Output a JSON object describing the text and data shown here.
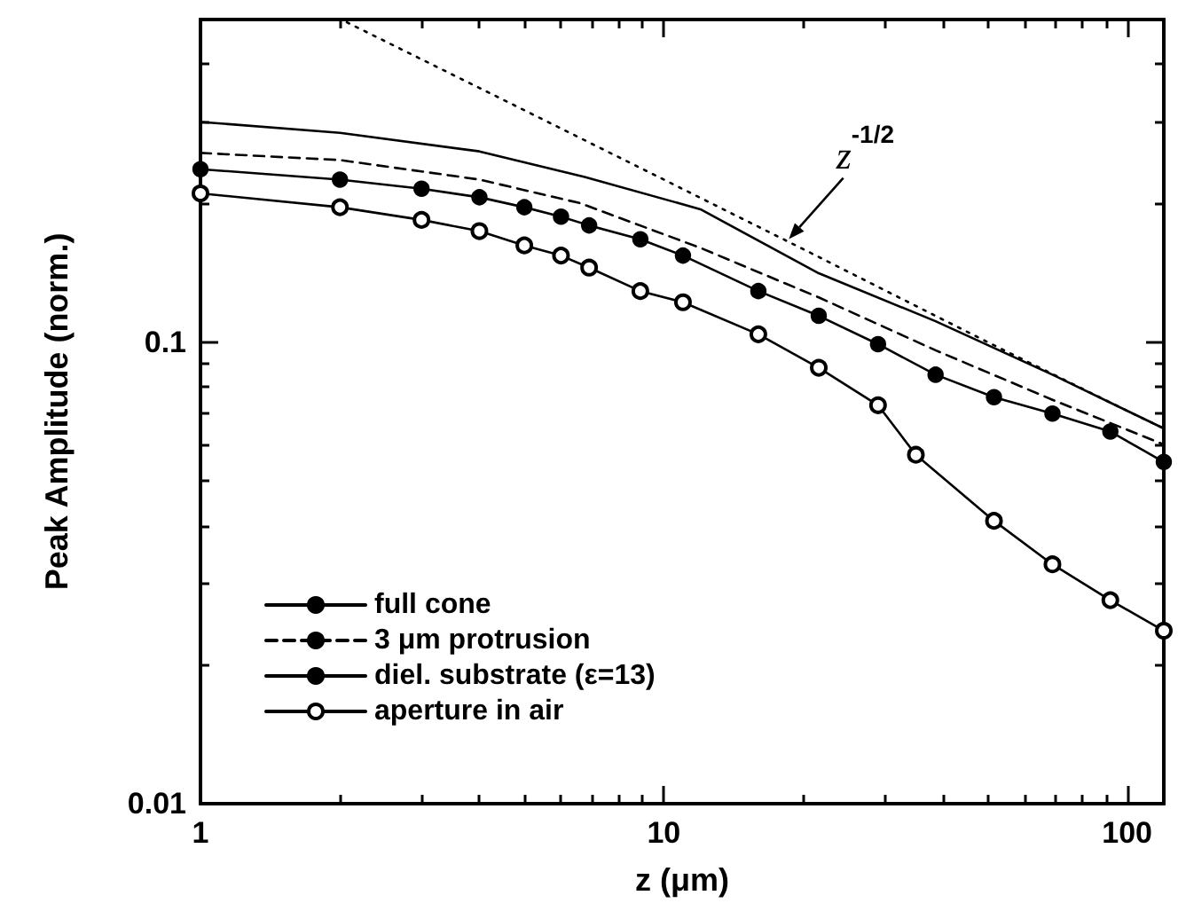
{
  "chart_data": {
    "type": "line",
    "xlabel": "z (μm)",
    "ylabel": "Peak Amplitude (norm.)",
    "log": "xy",
    "xlim": [
      1,
      120
    ],
    "ylim": [
      0.01,
      0.5
    ],
    "xticks": [
      1,
      {
        "value": 2,
        "label": null
      },
      {
        "value": 3,
        "label": null
      },
      {
        "value": 4,
        "label": null
      },
      {
        "value": 5,
        "label": null
      },
      {
        "value": 6,
        "label": null
      },
      {
        "value": 7,
        "label": null
      },
      {
        "value": 8,
        "label": null
      },
      {
        "value": 9,
        "label": null
      },
      10,
      {
        "value": 20,
        "label": null
      },
      {
        "value": 30,
        "label": null
      },
      {
        "value": 40,
        "label": null
      },
      {
        "value": 50,
        "label": null
      },
      {
        "value": 60,
        "label": null
      },
      {
        "value": 70,
        "label": null
      },
      {
        "value": 80,
        "label": null
      },
      {
        "value": 90,
        "label": null
      },
      100
    ],
    "yticks": [
      0.01,
      {
        "value": 0.02,
        "label": null
      },
      {
        "value": 0.03,
        "label": null
      },
      {
        "value": 0.04,
        "label": null
      },
      {
        "value": 0.05,
        "label": null
      },
      {
        "value": 0.06,
        "label": null
      },
      {
        "value": 0.07,
        "label": null
      },
      {
        "value": 0.08,
        "label": null
      },
      {
        "value": 0.09,
        "label": null
      },
      0.1,
      {
        "value": 0.2,
        "label": null
      },
      {
        "value": 0.3,
        "label": null
      },
      {
        "value": 0.4,
        "label": null
      }
    ],
    "grid": false,
    "legend": "bottom left",
    "series": [
      {
        "name": "full cone",
        "color": "#000000",
        "line_style": "solid",
        "marker": "none",
        "x": [
          1,
          2,
          4,
          6.75,
          12,
          21.6,
          38.6,
          69,
          120
        ],
        "values": [
          0.3,
          0.284,
          0.259,
          0.228,
          0.194,
          0.141,
          0.111,
          0.085,
          0.065
        ]
      },
      {
        "name": "3 μm protrusion",
        "color": "#000000",
        "line_style": "dashed",
        "marker": "none",
        "x": [
          1,
          2,
          4,
          6.6,
          12,
          21.6,
          38.6,
          69,
          120
        ],
        "values": [
          0.257,
          0.248,
          0.225,
          0.2,
          0.16,
          0.125,
          0.096,
          0.075,
          0.06
        ]
      },
      {
        "name": "diel. substrate (ε=13)",
        "color": "#000000",
        "line_style": "solid",
        "marker": "circle",
        "x": [
          1,
          2,
          3,
          4,
          5,
          6,
          6.9,
          8.9,
          11,
          16,
          21.6,
          29,
          38.6,
          51.6,
          69,
          92,
          120
        ],
        "values": [
          0.237,
          0.225,
          0.215,
          0.206,
          0.196,
          0.187,
          0.179,
          0.167,
          0.154,
          0.129,
          0.114,
          0.099,
          0.085,
          0.076,
          0.07,
          0.064,
          0.055
        ]
      },
      {
        "name": "aperture in air",
        "color": "#000000",
        "line_style": "solid",
        "marker": "open circle",
        "x": [
          1,
          2,
          3,
          4,
          5,
          6,
          6.9,
          8.9,
          11,
          16,
          21.6,
          29,
          35,
          51.6,
          69,
          92,
          120
        ],
        "values": [
          0.21,
          0.196,
          0.184,
          0.174,
          0.162,
          0.154,
          0.145,
          0.129,
          0.122,
          0.104,
          0.088,
          0.073,
          0.057,
          0.041,
          0.033,
          0.0276,
          0.0237
        ]
      },
      {
        "color": "#000000",
        "line_style": "dotted",
        "marker": "none",
        "x": [
          2.07,
          3,
          5,
          10,
          20,
          50,
          100,
          120
        ],
        "values": [
          0.493,
          0.41,
          0.318,
          0.225,
          0.159,
          0.1,
          0.071,
          0.065
        ]
      }
    ],
    "annotations": [
      {
        "text": "z$^{-1/2}$",
        "x": 18.4,
        "y": 0.165
      }
    ]
  }
}
